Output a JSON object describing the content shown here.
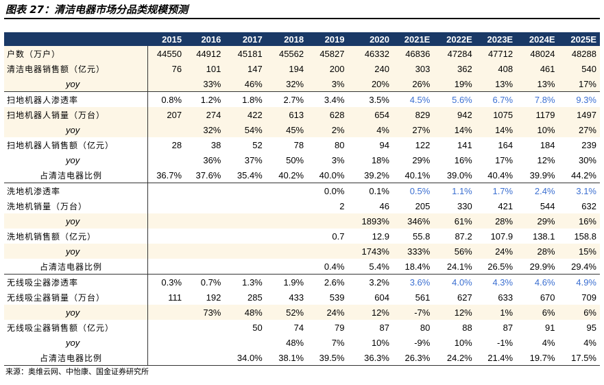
{
  "title": "图表 27：清洁电器市场分品类规模预测",
  "columns": [
    "",
    "2015",
    "2016",
    "2017",
    "2018",
    "2019",
    "2020",
    "2021E",
    "2022E",
    "2023E",
    "2024E",
    "2025E"
  ],
  "rows": [
    {
      "label": "户数（万户）",
      "kind": "main",
      "shade": true,
      "values": [
        "44550",
        "44912",
        "45181",
        "45562",
        "45827",
        "46332",
        "46836",
        "47284",
        "47712",
        "48024",
        "48288"
      ]
    },
    {
      "label": "清洁电器销售额（亿元）",
      "kind": "main",
      "shade": true,
      "values": [
        "76",
        "101",
        "147",
        "194",
        "200",
        "240",
        "303",
        "362",
        "408",
        "461",
        "540"
      ]
    },
    {
      "label": "yoy",
      "kind": "yoy",
      "shade": true,
      "values": [
        "",
        "33%",
        "46%",
        "32%",
        "3%",
        "20%",
        "26%",
        "19%",
        "13%",
        "13%",
        "17%"
      ]
    },
    {
      "label": "扫地机器人渗透率",
      "kind": "main",
      "shade": false,
      "group_start": true,
      "blue_from": 6,
      "values": [
        "0.8%",
        "1.2%",
        "1.8%",
        "2.7%",
        "3.4%",
        "3.5%",
        "4.5%",
        "5.6%",
        "6.7%",
        "7.8%",
        "9.3%"
      ]
    },
    {
      "label": "扫地机器人销量（万台）",
      "kind": "main",
      "shade": true,
      "values": [
        "207",
        "274",
        "422",
        "613",
        "628",
        "654",
        "829",
        "942",
        "1075",
        "1179",
        "1497"
      ]
    },
    {
      "label": "yoy",
      "kind": "yoy",
      "shade": true,
      "values": [
        "",
        "32%",
        "54%",
        "45%",
        "2%",
        "4%",
        "27%",
        "14%",
        "14%",
        "10%",
        "27%"
      ]
    },
    {
      "label": "扫地机器人销售额（亿元）",
      "kind": "main",
      "shade": false,
      "values": [
        "28",
        "38",
        "52",
        "78",
        "80",
        "94",
        "122",
        "141",
        "164",
        "184",
        "239"
      ]
    },
    {
      "label": "yoy",
      "kind": "yoy",
      "shade": false,
      "values": [
        "",
        "36%",
        "37%",
        "50%",
        "3%",
        "18%",
        "29%",
        "16%",
        "17%",
        "12%",
        "30%"
      ]
    },
    {
      "label": "占清洁电器比例",
      "kind": "share",
      "shade": false,
      "values": [
        "36.7%",
        "37.6%",
        "35.4%",
        "40.2%",
        "40.0%",
        "39.2%",
        "40.1%",
        "39.0%",
        "40.4%",
        "39.9%",
        "44.2%"
      ]
    },
    {
      "label": "洗地机渗透率",
      "kind": "main",
      "shade": false,
      "group_start": true,
      "blue_from": 6,
      "values": [
        "",
        "",
        "",
        "",
        "0.0%",
        "0.1%",
        "0.5%",
        "1.1%",
        "1.7%",
        "2.4%",
        "3.1%"
      ]
    },
    {
      "label": "洗地机销量（万台）",
      "kind": "main",
      "shade": false,
      "values": [
        "",
        "",
        "",
        "",
        "2",
        "46",
        "205",
        "330",
        "421",
        "544",
        "632"
      ]
    },
    {
      "label": "yoy",
      "kind": "yoy",
      "shade": true,
      "values": [
        "",
        "",
        "",
        "",
        "",
        "1893%",
        "346%",
        "61%",
        "28%",
        "29%",
        "16%"
      ]
    },
    {
      "label": "洗地机销售额（亿元）",
      "kind": "main",
      "shade": false,
      "values": [
        "",
        "",
        "",
        "",
        "0.7",
        "12.9",
        "55.8",
        "87.2",
        "107.9",
        "138.1",
        "158.8"
      ]
    },
    {
      "label": "yoy",
      "kind": "yoy",
      "shade": true,
      "values": [
        "",
        "",
        "",
        "",
        "",
        "1743%",
        "333%",
        "56%",
        "24%",
        "28%",
        "15%"
      ]
    },
    {
      "label": "占清洁电器比例",
      "kind": "share",
      "shade": false,
      "values": [
        "",
        "",
        "",
        "",
        "0.4%",
        "5.4%",
        "18.4%",
        "24.1%",
        "26.5%",
        "29.9%",
        "29.4%"
      ]
    },
    {
      "label": "无线吸尘器渗透率",
      "kind": "main",
      "shade": false,
      "group_start": true,
      "blue_from": 6,
      "values": [
        "0.3%",
        "0.7%",
        "1.3%",
        "1.9%",
        "2.6%",
        "3.2%",
        "3.6%",
        "4.0%",
        "4.3%",
        "4.6%",
        "4.9%"
      ]
    },
    {
      "label": "无线吸尘器销量（万台）",
      "kind": "main",
      "shade": false,
      "values": [
        "111",
        "192",
        "285",
        "433",
        "539",
        "604",
        "561",
        "627",
        "633",
        "670",
        "709"
      ]
    },
    {
      "label": "yoy",
      "kind": "yoy",
      "shade": true,
      "values": [
        "",
        "73%",
        "48%",
        "52%",
        "24%",
        "12%",
        "-7%",
        "12%",
        "1%",
        "6%",
        "6%"
      ]
    },
    {
      "label": "无线吸尘器销售额（亿元）",
      "kind": "main",
      "shade": false,
      "values": [
        "",
        "",
        "50",
        "74",
        "79",
        "87",
        "80",
        "88",
        "87",
        "91",
        "95"
      ]
    },
    {
      "label": "yoy",
      "kind": "yoy",
      "shade": false,
      "values": [
        "",
        "",
        "",
        "48%",
        "7%",
        "10%",
        "-9%",
        "10%",
        "-1%",
        "4%",
        "4%"
      ]
    },
    {
      "label": "占清洁电器比例",
      "kind": "share",
      "shade": false,
      "last": true,
      "values": [
        "",
        "",
        "34.0%",
        "38.1%",
        "39.5%",
        "36.3%",
        "26.3%",
        "24.2%",
        "21.4%",
        "19.7%",
        "17.5%"
      ]
    }
  ],
  "source": "来源：奥维云网、中怡康、国金证券研究所",
  "colors": {
    "header_bg": "#1a3966",
    "header_text": "#ffffff",
    "shade": "#fdf6e6",
    "forecast_blue": "#3b6fd1"
  }
}
